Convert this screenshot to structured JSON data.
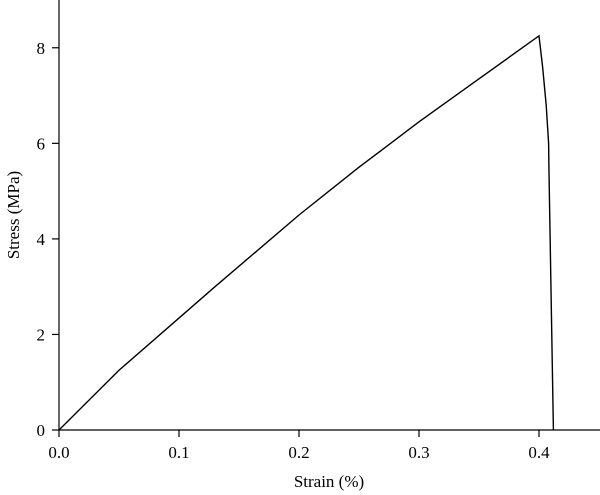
{
  "chart_data": {
    "type": "line",
    "x_label": "Strain (%)",
    "y_label": "Stress (MPa)",
    "x": [
      0,
      0.05,
      0.13,
      0.2,
      0.25,
      0.3,
      0.35,
      0.4,
      0.403,
      0.406,
      0.408,
      0.4083,
      0.412
    ],
    "series": [
      {
        "color": "#000000",
        "values": [
          0,
          1.25,
          3.0,
          4.5,
          5.5,
          6.45,
          7.35,
          8.25,
          7.6,
          6.8,
          6.0,
          5.45,
          0
        ]
      }
    ],
    "xlim": [
      0,
      0.45
    ],
    "ylim": [
      0,
      9
    ],
    "xticks": [
      {
        "value": 0,
        "label": "0.0"
      },
      0.1,
      0.2,
      0.3,
      0.4
    ],
    "yticks": [
      0,
      2,
      4,
      6,
      8
    ]
  }
}
